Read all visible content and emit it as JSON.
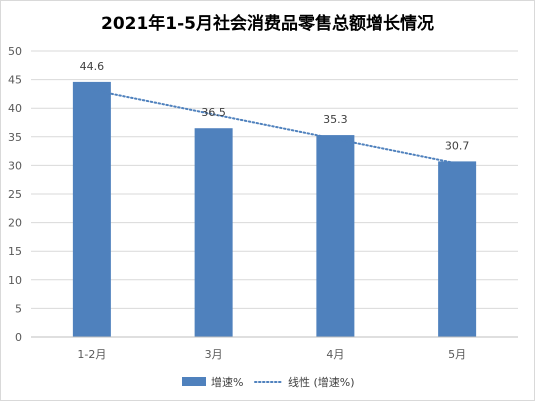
{
  "chart_data": {
    "type": "bar",
    "title": "2021年1-5月社会消费品零售总额增长情况",
    "categories": [
      "1-2月",
      "3月",
      "4月",
      "5月"
    ],
    "series": [
      {
        "name": "增速%",
        "values": [
          44.6,
          36.5,
          35.3,
          30.7
        ]
      }
    ],
    "trendline": {
      "name": "线性 (增速%)",
      "type": "linear"
    },
    "ylim": [
      0,
      50
    ],
    "yticks": [
      "0",
      "5",
      "10",
      "15",
      "20",
      "25",
      "30",
      "35",
      "40",
      "45",
      "50"
    ],
    "grid": true,
    "legend_position": "bottom",
    "colors": {
      "bar": "#4f81bd",
      "trend": "#4f81bd",
      "grid": "#d9d9d9"
    }
  }
}
